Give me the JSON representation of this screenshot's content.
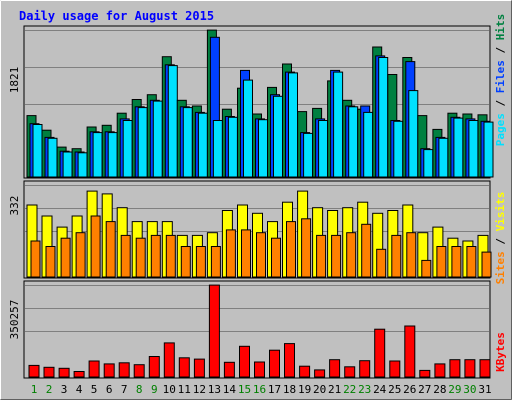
{
  "chart_data": {
    "title": "Daily usage for August 2015",
    "days": [
      "1",
      "2",
      "3",
      "4",
      "5",
      "6",
      "7",
      "8",
      "9",
      "10",
      "11",
      "12",
      "13",
      "14",
      "15",
      "16",
      "17",
      "18",
      "19",
      "20",
      "21",
      "22",
      "23",
      "24",
      "25",
      "26",
      "27",
      "28",
      "29",
      "30",
      "31"
    ],
    "weekend_days": [
      "1",
      "8",
      "15",
      "22",
      "29"
    ],
    "weekend_adjacent_days": [
      "2",
      "9",
      "16",
      "23",
      "30"
    ],
    "colors": {
      "background": "#c0c0c0",
      "title": "#0000ff",
      "hits": "#008040",
      "files": "#0040ff",
      "pages": "#00e0ff",
      "visits": "#ffff00",
      "sites": "#ff8000",
      "kbytes": "#ff0000",
      "weekend_label": "#008000"
    },
    "panels": [
      {
        "type": "bar",
        "max_label": "1821",
        "ylim": [
          0,
          1821
        ],
        "legend": [
          {
            "name": "Pages",
            "color": "#00e0ff"
          },
          {
            "name": "Files",
            "color": "#0040ff"
          },
          {
            "name": "Hits",
            "color": "#008040"
          }
        ],
        "series": [
          {
            "name": "Hits",
            "values": [
              760,
              580,
              370,
              350,
              620,
              640,
              790,
              960,
              1020,
              1490,
              950,
              880,
              1820,
              840,
              1100,
              780,
              1110,
              1400,
              810,
              850,
              1190,
              950,
              840,
              1610,
              1270,
              1480,
              760,
              590,
              790,
              780,
              770
            ]
          },
          {
            "name": "Files",
            "values": [
              660,
              490,
              320,
              310,
              560,
              560,
              720,
              870,
              950,
              1390,
              870,
              800,
              1730,
              750,
              1320,
              720,
              1020,
              1300,
              550,
              720,
              1320,
              880,
              880,
              1500,
              700,
              1430,
              350,
              490,
              740,
              720,
              690
            ]
          },
          {
            "name": "Pages",
            "values": [
              650,
              480,
              310,
              300,
              550,
              550,
              700,
              860,
              940,
              1380,
              860,
              790,
              700,
              740,
              1200,
              710,
              1000,
              1290,
              540,
              700,
              1300,
              870,
              800,
              1480,
              690,
              1070,
              340,
              480,
              730,
              700,
              680
            ]
          }
        ]
      },
      {
        "type": "bar",
        "max_label": "332",
        "ylim": [
          0,
          332
        ],
        "legend": [
          {
            "name": "Sites",
            "color": "#ff8000"
          },
          {
            "name": "Visits",
            "color": "#ffff00"
          }
        ],
        "series": [
          {
            "name": "Visits",
            "values": [
              260,
              220,
              180,
              220,
              310,
              300,
              250,
              200,
              200,
              200,
              150,
              150,
              160,
              240,
              260,
              230,
              200,
              270,
              310,
              250,
              240,
              250,
              270,
              230,
              240,
              260,
              160,
              180,
              140,
              130,
              150
            ]
          },
          {
            "name": "Sites",
            "values": [
              130,
              110,
              140,
              160,
              220,
              200,
              150,
              140,
              150,
              150,
              110,
              110,
              110,
              170,
              170,
              160,
              140,
              200,
              210,
              150,
              150,
              160,
              190,
              100,
              150,
              160,
              60,
              110,
              110,
              110,
              90
            ]
          }
        ]
      },
      {
        "type": "bar",
        "max_label": "350257",
        "ylim": [
          0,
          350257
        ],
        "legend": [
          {
            "name": "KBytes",
            "color": "#ff0000"
          }
        ],
        "series": [
          {
            "name": "KBytes",
            "values": [
              44000,
              37000,
              33000,
              21000,
              61000,
              50000,
              54000,
              47000,
              78000,
              130000,
              73000,
              68000,
              350000,
              56000,
              117000,
              57000,
              102000,
              127000,
              41000,
              27000,
              66000,
              39000,
              62000,
              182000,
              61000,
              194000,
              25000,
              50000,
              66000,
              66000,
              66000
            ]
          }
        ]
      }
    ]
  }
}
